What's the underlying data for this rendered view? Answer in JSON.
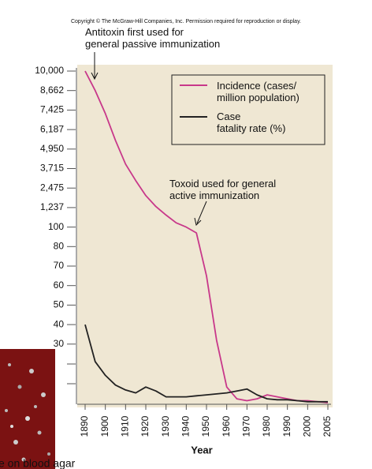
{
  "copyright": "Copyright © The McGraw-Hill Companies, Inc. Permission required for reproduction or display.",
  "caption": "e on blood agar",
  "chart_data": {
    "type": "line",
    "x_label": "Year",
    "annotations": [
      "Antitoxin first used for\ngeneral passive immunization",
      "Toxoid used for general\nactive immunization"
    ],
    "x": [
      1890,
      1895,
      1900,
      1905,
      1910,
      1915,
      1920,
      1925,
      1930,
      1935,
      1940,
      1945,
      1950,
      1955,
      1960,
      1965,
      1970,
      1975,
      1980,
      1985,
      1990,
      1995,
      2000,
      2005
    ],
    "series": [
      {
        "name": "Incidence (cases/\nmillion population)",
        "color": "#c8388a",
        "values": [
          10000,
          8662,
          7200,
          5500,
          4000,
          2950,
          2000,
          1300,
          800,
          350,
          100,
          94,
          65,
          32,
          8,
          2,
          1,
          2,
          4,
          3,
          2,
          1,
          1,
          0
        ]
      },
      {
        "name": "Case\nfatality rate (%)",
        "color": "#222222",
        "values": [
          40,
          21,
          14,
          9,
          6.5,
          5,
          8,
          6,
          3,
          3,
          3,
          3.5,
          4,
          4.5,
          5,
          6,
          7,
          4,
          2,
          1.5,
          1.5,
          1,
          0.5,
          0.5
        ]
      }
    ],
    "xlim": [
      1890,
      2005
    ],
    "xticks": [
      1890,
      1900,
      1910,
      1920,
      1930,
      1940,
      1950,
      1960,
      1970,
      1980,
      1990,
      2000,
      2005
    ],
    "ylim": [
      0,
      10000
    ],
    "yticks": [
      {
        "value": 10000,
        "label": "10,000"
      },
      {
        "value": 8662,
        "label": "8,662"
      },
      {
        "value": 7425,
        "label": "7,425"
      },
      {
        "value": 6187,
        "label": "6,187"
      },
      {
        "value": 4950,
        "label": "4,950"
      },
      {
        "value": 3715,
        "label": "3,715"
      },
      {
        "value": 2475,
        "label": "2,475"
      },
      {
        "value": 1237,
        "label": "1,237"
      },
      100,
      80,
      70,
      60,
      50,
      40,
      30
    ],
    "legend": "upper right"
  }
}
